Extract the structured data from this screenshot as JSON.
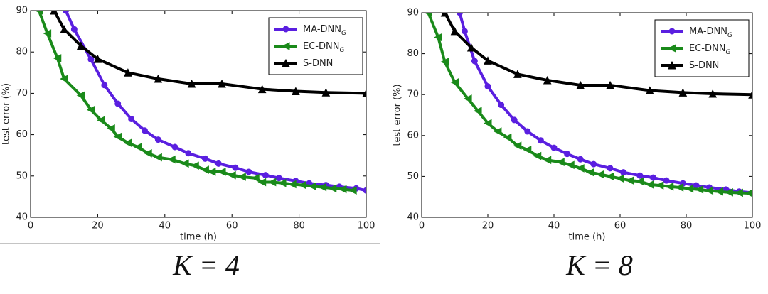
{
  "chart_data": [
    {
      "type": "line",
      "caption": "K = 4",
      "x_label": "time (h)",
      "y_label": "test error (%)",
      "xlim": [
        0,
        100
      ],
      "ylim": [
        40,
        90
      ],
      "xticks": [
        0,
        20,
        40,
        60,
        80,
        100
      ],
      "yticks": [
        40,
        50,
        60,
        70,
        80,
        90
      ],
      "series": [
        {
          "name": "MA-DNN",
          "subscript": "G",
          "color": "#5a1fe0",
          "marker": "circle",
          "x": [
            10.5,
            13,
            18,
            22,
            26,
            30,
            34,
            38,
            43,
            47,
            52,
            56,
            61,
            65,
            70,
            74,
            79,
            83,
            88,
            92,
            97,
            100
          ],
          "values": [
            90,
            85.5,
            78.2,
            72,
            67.5,
            63.8,
            61,
            58.8,
            57,
            55.5,
            54.2,
            53,
            52,
            51,
            50.2,
            49.5,
            48.8,
            48.2,
            47.8,
            47.4,
            47,
            46.5
          ]
        },
        {
          "name": "EC-DNN",
          "subscript": "G",
          "color": "#1a8a1a",
          "marker": "tri-left",
          "x": [
            2.5,
            5,
            8,
            10,
            15,
            18,
            21,
            24,
            26,
            29,
            32,
            35,
            38,
            42,
            46,
            49,
            52,
            54,
            57,
            60,
            63,
            67,
            69,
            72,
            75,
            78,
            81,
            84,
            87,
            90,
            93,
            96
          ],
          "values": [
            90,
            84.5,
            78.5,
            73.5,
            69.5,
            66,
            63.5,
            61.5,
            59.5,
            58,
            57,
            55.5,
            54.5,
            54,
            53,
            52.5,
            51.5,
            51,
            51,
            50.2,
            49.8,
            49.5,
            48.5,
            48.5,
            48.3,
            48,
            47.8,
            47.5,
            47.3,
            47,
            46.8,
            46.5
          ]
        },
        {
          "name": "S-DNN",
          "color": "#000000",
          "marker": "tri-up",
          "x": [
            7,
            10,
            15,
            20,
            29,
            38,
            48,
            57,
            69,
            79,
            88,
            100
          ],
          "values": [
            90,
            85.5,
            81.5,
            78.3,
            75,
            73.5,
            72.3,
            72.3,
            71,
            70.5,
            70.2,
            70
          ]
        }
      ]
    },
    {
      "type": "line",
      "caption": "K = 8",
      "x_label": "time (h)",
      "y_label": "test error (%)",
      "xlim": [
        0,
        100
      ],
      "ylim": [
        40,
        90
      ],
      "xticks": [
        0,
        20,
        40,
        60,
        80,
        100
      ],
      "yticks": [
        40,
        50,
        60,
        70,
        80,
        90
      ],
      "series": [
        {
          "name": "MA-DNN",
          "subscript": "G",
          "color": "#5a1fe0",
          "marker": "circle",
          "x": [
            11.5,
            13,
            16,
            20,
            24,
            28,
            32,
            36,
            40,
            44,
            48,
            52,
            57,
            61,
            66,
            70,
            74,
            79,
            83,
            87,
            92,
            96,
            100
          ],
          "values": [
            90,
            85.5,
            78.2,
            72,
            67.5,
            63.8,
            61,
            58.8,
            57,
            55.5,
            54.2,
            53,
            52,
            51,
            50.2,
            49.7,
            49,
            48.3,
            47.8,
            47.3,
            46.8,
            46.3,
            46
          ]
        },
        {
          "name": "EC-DNN",
          "subscript": "G",
          "color": "#1a8a1a",
          "marker": "tri-left",
          "x": [
            2,
            5,
            7,
            10,
            14,
            17,
            20,
            23,
            26,
            29,
            32,
            35,
            38,
            42,
            45,
            48,
            51,
            54,
            57,
            60,
            63,
            66,
            69,
            72,
            75,
            78,
            81,
            84,
            87,
            90,
            93,
            96,
            99
          ],
          "values": [
            90,
            84,
            78,
            73,
            69,
            66,
            63,
            61,
            59.5,
            57.5,
            56.5,
            55,
            54,
            53.5,
            52.8,
            52,
            51,
            50.5,
            50,
            49.5,
            49,
            48.8,
            48,
            47.8,
            47.5,
            47.3,
            47,
            46.8,
            46.5,
            46.3,
            46.1,
            46,
            45.9
          ]
        },
        {
          "name": "S-DNN",
          "color": "#000000",
          "marker": "tri-up",
          "x": [
            7,
            10,
            15,
            20,
            29,
            38,
            48,
            57,
            69,
            79,
            88,
            100
          ],
          "values": [
            90,
            85.5,
            81.5,
            78.3,
            75,
            73.5,
            72.3,
            72.3,
            71,
            70.5,
            70.2,
            70
          ]
        }
      ]
    }
  ]
}
